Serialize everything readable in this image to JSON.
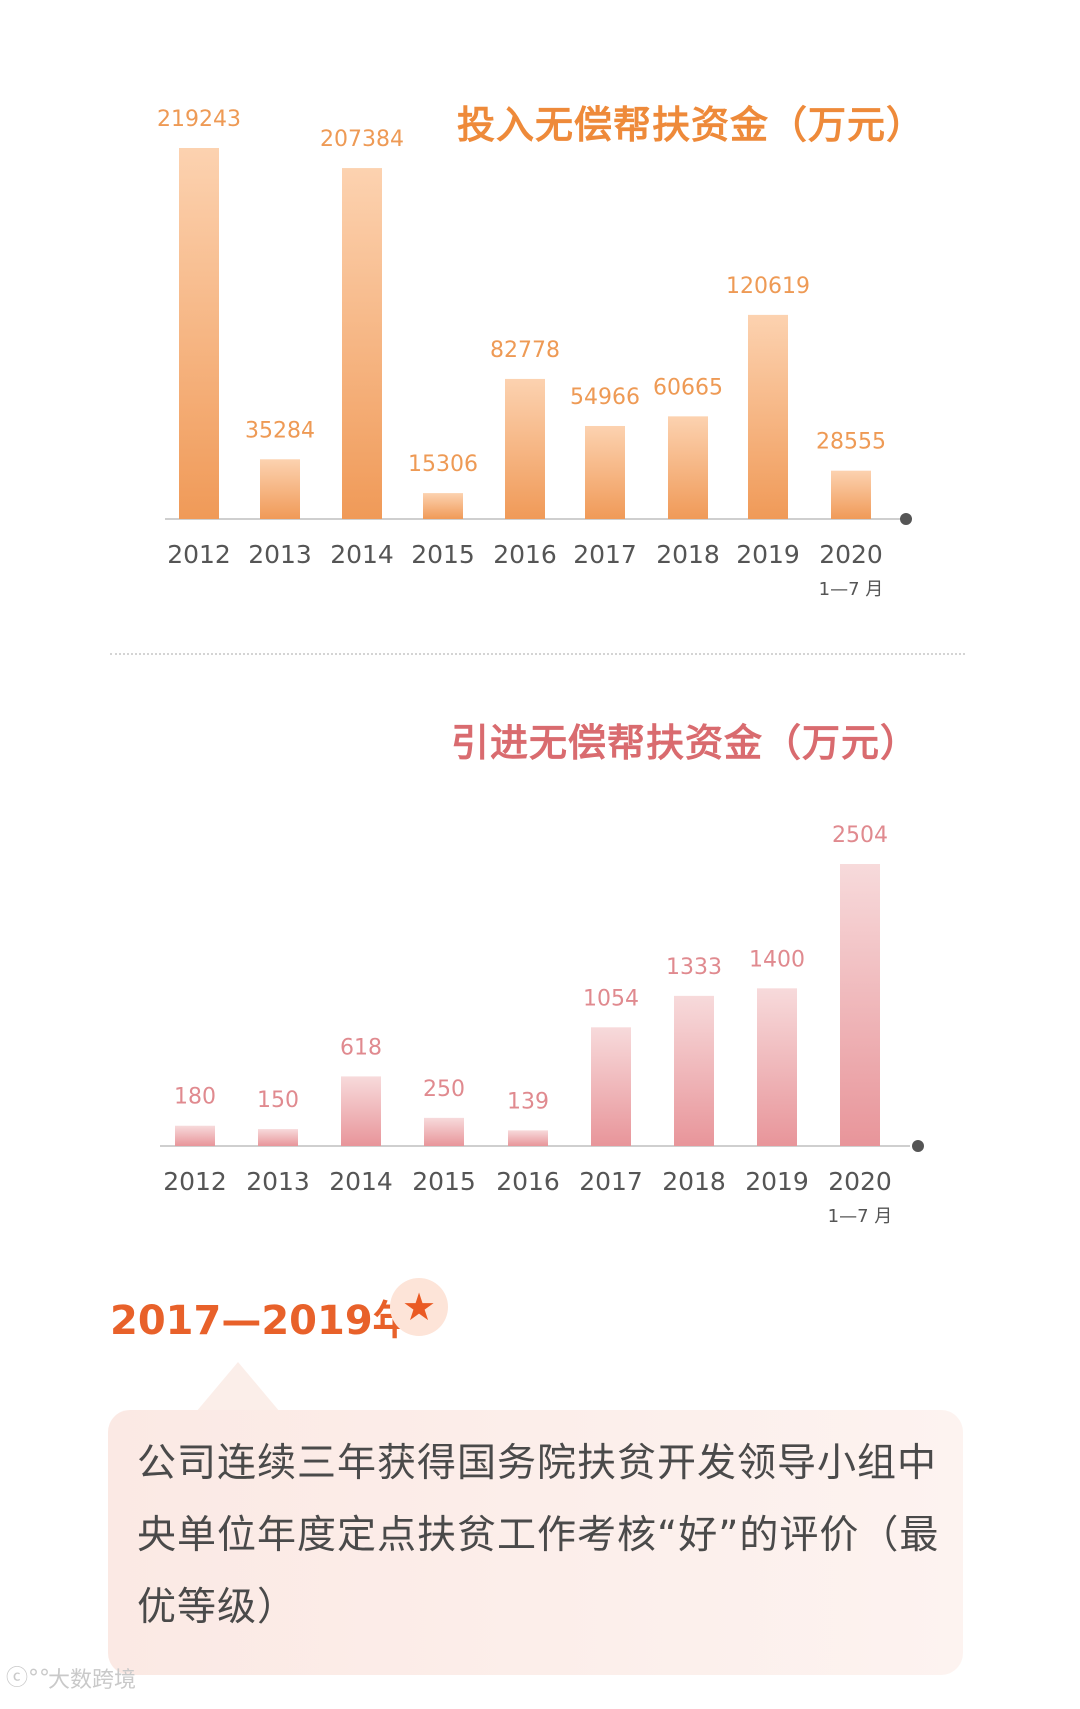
{
  "chart_data": [
    {
      "type": "bar",
      "title": "投入无偿帮扶资金（万元）",
      "categories": [
        "2012",
        "2013",
        "2014",
        "2015",
        "2016",
        "2017",
        "2018",
        "2019",
        "2020"
      ],
      "category_sublabels": [
        "",
        "",
        "",
        "",
        "",
        "",
        "",
        "",
        "1—7 月"
      ],
      "values": [
        219243,
        35284,
        207384,
        15306,
        82778,
        54966,
        60665,
        120619,
        28555
      ],
      "value_labels": [
        "219243",
        "35284",
        "207384",
        "15306",
        "82778",
        "54966",
        "60665",
        "120619",
        "28555"
      ],
      "ylim": [
        0,
        219243
      ],
      "grid": false,
      "colors": {
        "top": "#fcd2b0",
        "bottom": "#f09a58",
        "label": "#ee9a55",
        "axis": "#cfcfcf",
        "dot": "#555555"
      }
    },
    {
      "type": "bar",
      "title": "引进无偿帮扶资金（万元）",
      "categories": [
        "2012",
        "2013",
        "2014",
        "2015",
        "2016",
        "2017",
        "2018",
        "2019",
        "2020"
      ],
      "category_sublabels": [
        "",
        "",
        "",
        "",
        "",
        "",
        "",
        "",
        "1—7 月"
      ],
      "values": [
        180,
        150,
        618,
        250,
        139,
        1054,
        1333,
        1400,
        2504
      ],
      "value_labels": [
        "180",
        "150",
        "618",
        "250",
        "139",
        "1054",
        "1333",
        "1400",
        "2504"
      ],
      "ylim": [
        0,
        2504
      ],
      "grid": false,
      "colors": {
        "top": "#f7dadb",
        "bottom": "#e8959a",
        "label": "#e08a8f",
        "axis": "#cfcfcf",
        "dot": "#555555"
      }
    }
  ],
  "section": {
    "year_label": "2017—2019年",
    "star_icon": "★",
    "text": "公司连续三年获得国务院扶贫开发领导小组中央单位年度定点扶贫工作考核“好”的评价（最优等级）"
  },
  "watermark": {
    "icon": "ⓒ°°",
    "text": "大数跨境"
  }
}
